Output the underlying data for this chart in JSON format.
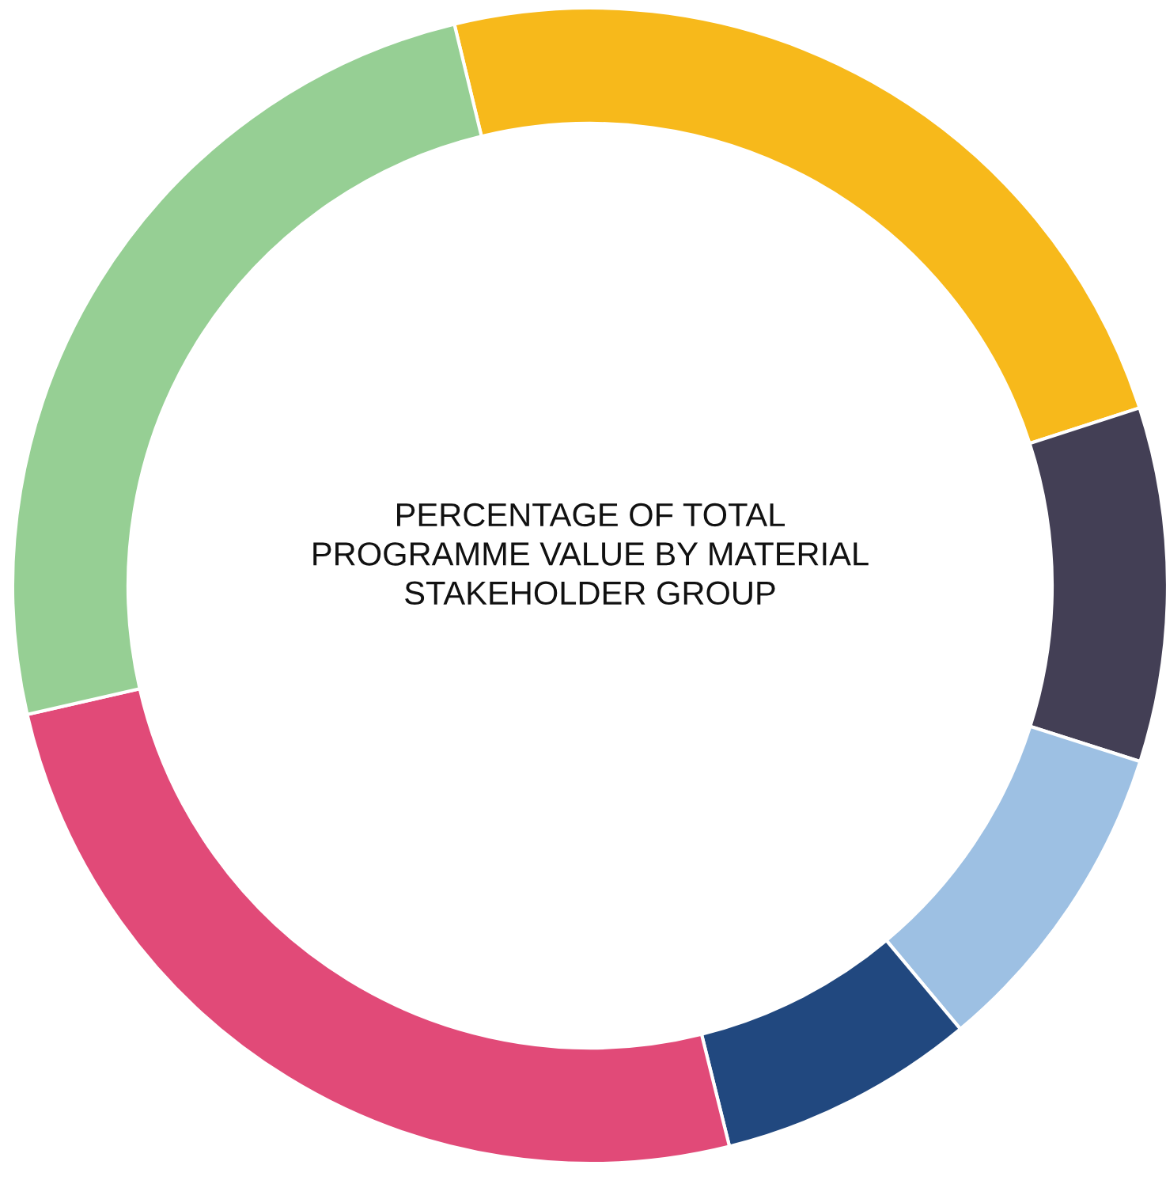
{
  "chart_data": {
    "type": "donut",
    "title": "PERCENTAGE OF TOTAL\nPROGRAMME VALUE BY MATERIAL\nSTAKEHOLDER GROUP",
    "categories": [
      null,
      null,
      null,
      null,
      null,
      null
    ],
    "values": [
      23.8,
      9.9,
      9.0,
      7.2,
      25.3,
      24.8
    ],
    "colors": [
      "#f7b91b",
      "#433f55",
      "#9dc0e3",
      "#21487f",
      "#e14a78",
      "#96cf94"
    ],
    "legend": false
  }
}
